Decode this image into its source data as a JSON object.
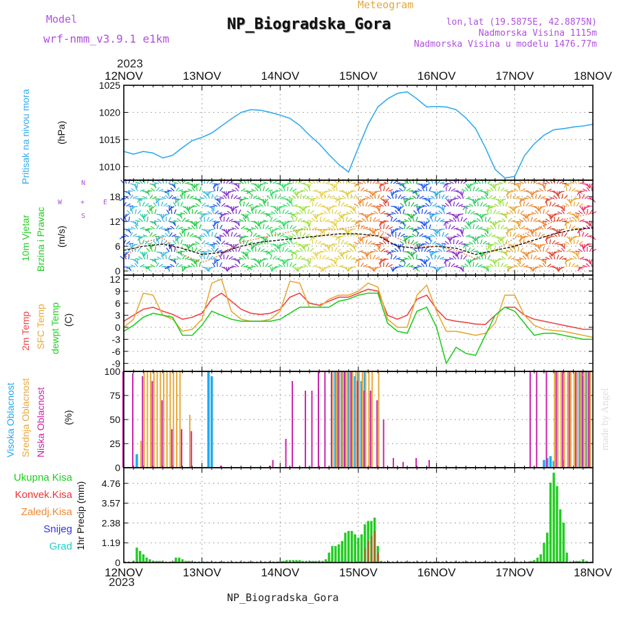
{
  "header": {
    "model_label": "Model",
    "model_name": "wrf-nmm_v3.9.1 e1km",
    "title": "NP_Biogradska_Gora",
    "meteogram": "Meteogram",
    "lonlat": "lon,lat (19.5875E, 42.8875N)",
    "altitude": "Nadmorska Visina 1115m",
    "model_altitude": "Nadmorska Visina u modelu 1476.77m"
  },
  "year_top": "2023",
  "year_bottom": "2023",
  "footer": "NP_Biogradska_Gora",
  "watermark": "made by Angel",
  "compass": {
    "n": "N",
    "s": "S",
    "e": "E",
    "w": "W",
    "plus": "+"
  },
  "panel_labels": {
    "pressure": {
      "text": "Pritisak na nivou mora",
      "unit": "(hPa)",
      "color": "#33aaee"
    },
    "wind": {
      "line1": "10m Vjetar",
      "line2": "Brzina i Pravac",
      "unit": "(m/s)",
      "color": "#22cc22"
    },
    "temp": {
      "line1": "2m Temp",
      "line2": "SFC Temp",
      "line3": "dewpt Temp",
      "unit": "(C)",
      "colors": [
        "#ee4444",
        "#e8a838",
        "#22cc22"
      ]
    },
    "cloud": {
      "line1": "Visoka Oblacnost",
      "line2": "Srednja Oblacnost",
      "line3": "Niska Oblacnost",
      "unit": "(%)",
      "colors": [
        "#22aaee",
        "#e8a838",
        "#cc22aa"
      ]
    },
    "precip": {
      "items": [
        {
          "text": "Ukupna Kisa",
          "color": "#22cc22"
        },
        {
          "text": "Konvek.Kisa",
          "color": "#ee3333"
        },
        {
          "text": "Zaledj.Kisa",
          "color": "#ee8833"
        },
        {
          "text": "Snijeg",
          "color": "#3333dd"
        },
        {
          "text": "Grad",
          "color": "#22cccc"
        }
      ],
      "unit": "1hr Precip (mm)"
    }
  },
  "chart_data": [
    {
      "type": "line",
      "name": "pressure",
      "x_ticks": [
        "12NOV",
        "13NOV",
        "14NOV",
        "15NOV",
        "16NOV",
        "17NOV",
        "18NOV"
      ],
      "ylim": [
        1007.5,
        1025
      ],
      "y_ticks": [
        "1010",
        "1015",
        "1020",
        "1025"
      ],
      "y_tick_values": [
        1010,
        1015,
        1020,
        1025
      ],
      "grid": true,
      "color": "#33aaee",
      "x_hours": [
        0,
        3,
        6,
        9,
        12,
        15,
        18,
        21,
        24,
        27,
        30,
        33,
        36,
        39,
        42,
        45,
        48,
        51,
        54,
        57,
        60,
        63,
        66,
        69,
        72,
        75,
        78,
        81,
        84,
        87,
        90,
        93,
        96,
        99,
        102,
        105,
        108,
        111,
        114,
        117,
        120,
        123,
        126,
        129,
        132,
        135,
        138,
        141,
        144
      ],
      "values": [
        1012.8,
        1012.3,
        1012.8,
        1012.5,
        1011.6,
        1012.1,
        1013.5,
        1014.8,
        1015.4,
        1016.2,
        1017.5,
        1018.8,
        1020.0,
        1020.5,
        1020.4,
        1020.0,
        1019.5,
        1018.9,
        1017.6,
        1015.8,
        1014.2,
        1012.2,
        1010.4,
        1009.0,
        1013.5,
        1017.8,
        1021.0,
        1022.5,
        1023.5,
        1023.8,
        1022.5,
        1021.0,
        1021.1,
        1021.0,
        1020.5,
        1019.0,
        1017.0,
        1013.5,
        1009.5,
        1007.9,
        1008.2,
        1012.0,
        1014.2,
        1015.8,
        1016.8,
        1017.0,
        1017.3,
        1017.5,
        1017.8
      ]
    },
    {
      "type": "line",
      "name": "wind",
      "ylim": [
        -1,
        22
      ],
      "y_ticks": [
        "0",
        "6",
        "12",
        "18"
      ],
      "y_tick_values": [
        0,
        6,
        12,
        18
      ],
      "grid": true,
      "x_hours": [
        0,
        6,
        12,
        18,
        24,
        30,
        36,
        42,
        48,
        54,
        60,
        66,
        72,
        78,
        84,
        90,
        96,
        102,
        108,
        114,
        120,
        126,
        132,
        138,
        144
      ],
      "speed_solid": [
        5,
        6,
        6.5,
        5.5,
        4,
        4.5,
        6,
        7,
        7.5,
        8,
        8.5,
        9,
        9,
        8.5,
        6,
        5.5,
        6,
        5.5,
        4,
        5,
        6,
        7.5,
        9,
        10,
        10.5
      ],
      "speed_gust": [
        3,
        7,
        8,
        4,
        2,
        4,
        7,
        8,
        9,
        10,
        10,
        10,
        11,
        10,
        8,
        6,
        6,
        5,
        3,
        5,
        8,
        10,
        12,
        13,
        14
      ],
      "band_colors": [
        "#2255ee",
        "#44bbdd",
        "#33dd66",
        "#9ee044",
        "#e8d050",
        "#ee8833",
        "#dd3322",
        "#8833cc"
      ],
      "bands": [
        {
          "from": 0,
          "to": 2,
          "c": "#2255ee"
        },
        {
          "from": 2,
          "to": 5,
          "c": "#44bbdd"
        },
        {
          "from": 5,
          "to": 8,
          "c": "#22cc99"
        },
        {
          "from": 8,
          "to": 10,
          "c": "#33cc33"
        },
        {
          "from": 10,
          "to": 14,
          "c": "#44bbdd"
        },
        {
          "from": 14,
          "to": 16,
          "c": "#2244dd"
        },
        {
          "from": 16,
          "to": 18,
          "c": "#33cc88"
        },
        {
          "from": 18,
          "to": 24,
          "c": "#22cc44"
        },
        {
          "from": 24,
          "to": 28,
          "c": "#44bbdd"
        },
        {
          "from": 28,
          "to": 30,
          "c": "#2255ee"
        },
        {
          "from": 30,
          "to": 36,
          "c": "#8833cc"
        },
        {
          "from": 36,
          "to": 39,
          "c": "#22cc44"
        },
        {
          "from": 39,
          "to": 45,
          "c": "#33cc55"
        },
        {
          "from": 45,
          "to": 52,
          "c": "#33dd66"
        },
        {
          "from": 52,
          "to": 58,
          "c": "#9ee044"
        },
        {
          "from": 58,
          "to": 66,
          "c": "#e8d050"
        },
        {
          "from": 66,
          "to": 72,
          "c": "#ddcc44"
        },
        {
          "from": 72,
          "to": 79,
          "c": "#ee8833"
        },
        {
          "from": 79,
          "to": 82,
          "c": "#dd4433"
        },
        {
          "from": 82,
          "to": 86,
          "c": "#2255ee"
        },
        {
          "from": 86,
          "to": 90,
          "c": "#22bb44"
        },
        {
          "from": 90,
          "to": 94,
          "c": "#2255ee"
        },
        {
          "from": 94,
          "to": 99,
          "c": "#33aaee"
        },
        {
          "from": 99,
          "to": 105,
          "c": "#8833cc"
        },
        {
          "from": 105,
          "to": 112,
          "c": "#33cc66"
        },
        {
          "from": 112,
          "to": 118,
          "c": "#9ee044"
        },
        {
          "from": 118,
          "to": 122,
          "c": "#e8a838"
        },
        {
          "from": 122,
          "to": 130,
          "c": "#ee8833"
        },
        {
          "from": 130,
          "to": 136,
          "c": "#dd4433"
        },
        {
          "from": 136,
          "to": 140,
          "c": "#e8a838"
        },
        {
          "from": 140,
          "to": 144,
          "c": "#ee3366"
        }
      ]
    },
    {
      "type": "line",
      "name": "temperature",
      "ylim": [
        -11,
        13
      ],
      "y_ticks": [
        "-9",
        "-6",
        "-3",
        "0",
        "3",
        "6",
        "9",
        "12"
      ],
      "y_tick_values": [
        -9,
        -6,
        -3,
        0,
        3,
        6,
        9,
        12
      ],
      "grid": true,
      "x_hours": [
        0,
        3,
        6,
        9,
        12,
        15,
        18,
        21,
        24,
        27,
        30,
        33,
        36,
        39,
        42,
        45,
        48,
        51,
        54,
        57,
        60,
        63,
        66,
        69,
        72,
        75,
        78,
        81,
        84,
        87,
        90,
        93,
        96,
        99,
        102,
        105,
        108,
        111,
        114,
        117,
        120,
        123,
        126,
        129,
        132,
        135,
        138,
        141,
        144
      ],
      "series": [
        {
          "name": "2m Temp",
          "color": "#ee4444",
          "values": [
            1.5,
            3,
            4.5,
            5,
            4,
            3.2,
            2,
            2.5,
            3.5,
            7,
            8.5,
            6.5,
            4.5,
            3.5,
            3.2,
            3.5,
            4.5,
            7.5,
            8.5,
            6,
            5.5,
            6.5,
            7.5,
            7.5,
            8.5,
            9.5,
            9,
            3,
            2,
            3,
            7,
            8,
            4.5,
            2,
            1.5,
            1.2,
            0.8,
            0.7,
            3,
            5,
            5,
            3,
            2,
            1.5,
            1,
            0.5,
            0,
            -0.5,
            -0.5
          ]
        },
        {
          "name": "SFC Temp",
          "color": "#e8a838",
          "values": [
            0,
            2,
            8.5,
            8,
            3,
            2,
            -1,
            -0.5,
            2,
            11,
            12,
            4,
            2,
            1.5,
            1.5,
            2,
            4,
            11.5,
            11,
            5,
            5,
            7,
            8,
            8,
            9,
            11,
            10,
            2,
            0,
            0,
            8,
            10.5,
            4,
            -1,
            -1,
            -1.5,
            -2,
            -1.5,
            1,
            8,
            8,
            3,
            0.5,
            -0.5,
            -0.8,
            -1,
            -1.5,
            -2,
            -2.5
          ]
        },
        {
          "name": "dewpt Temp",
          "color": "#22cc22",
          "values": [
            -1,
            0.5,
            2.5,
            3.5,
            3,
            2.5,
            -2,
            -2,
            0.5,
            4,
            3,
            2,
            1.5,
            1.5,
            1.5,
            1.5,
            2,
            3.5,
            5,
            5,
            5,
            5,
            6.5,
            7,
            8,
            8.5,
            8.5,
            1,
            -1,
            -1.5,
            4,
            5,
            0,
            -9,
            -5,
            -6.5,
            -7,
            -2,
            3,
            5,
            4,
            1,
            -2,
            -1.5,
            -1.5,
            -2,
            -2.5,
            -3,
            -3
          ]
        }
      ]
    },
    {
      "type": "bar",
      "name": "cloud",
      "ylim": [
        0,
        100
      ],
      "y_ticks": [
        "0",
        "25",
        "50",
        "75",
        "100"
      ],
      "y_tick_values": [
        0,
        25,
        50,
        75,
        100
      ],
      "grid": true,
      "series": [
        {
          "name": "Visoka Oblacnost",
          "color": "#22aaee",
          "x": [
            4,
            26,
            27,
            65,
            66,
            67,
            68,
            69,
            70,
            71,
            72,
            73,
            74,
            129,
            130,
            131,
            132,
            135,
            140,
            141,
            142,
            143
          ],
          "values": [
            14,
            100,
            95,
            100,
            100,
            100,
            100,
            100,
            100,
            95,
            100,
            90,
            100,
            8,
            10,
            12,
            7,
            8,
            100,
            95,
            100,
            100
          ]
        },
        {
          "name": "Srednja Oblacnost",
          "color": "#e8a838",
          "x": [
            5,
            6,
            7,
            8,
            9,
            10,
            11,
            12,
            13,
            14,
            15,
            16,
            17,
            20,
            64,
            65,
            66,
            67,
            68,
            69,
            70,
            71,
            72,
            73,
            74,
            75,
            76,
            78,
            132,
            133,
            134,
            135,
            136,
            137,
            138,
            139,
            140,
            141,
            142,
            143
          ],
          "values": [
            28,
            100,
            100,
            100,
            100,
            100,
            100,
            100,
            100,
            100,
            100,
            100,
            100,
            55,
            100,
            100,
            100,
            100,
            100,
            100,
            100,
            100,
            100,
            100,
            100,
            100,
            100,
            100,
            100,
            100,
            100,
            100,
            100,
            100,
            100,
            100,
            100,
            100,
            100,
            100
          ]
        },
        {
          "name": "Niska Oblacnost",
          "color": "#cc22aa",
          "x": [
            0,
            3,
            6,
            9,
            12,
            15,
            18,
            21,
            30,
            45,
            46,
            50,
            52,
            56,
            58,
            60,
            62,
            64,
            66,
            68,
            70,
            72,
            74,
            76,
            78,
            80,
            83,
            86,
            90,
            94,
            125,
            127,
            130,
            133,
            135,
            137,
            139,
            141,
            143
          ],
          "values": [
            100,
            98,
            95,
            90,
            70,
            40,
            40,
            38,
            2,
            2,
            8,
            30,
            90,
            80,
            80,
            100,
            100,
            100,
            100,
            100,
            100,
            90,
            80,
            80,
            70,
            50,
            10,
            6,
            10,
            8,
            100,
            100,
            100,
            100,
            100,
            100,
            100,
            100,
            100
          ]
        }
      ]
    },
    {
      "type": "bar",
      "name": "precip",
      "x_ticks": [
        "12NOV",
        "13NOV",
        "14NOV",
        "15NOV",
        "16NOV",
        "17NOV",
        "18NOV"
      ],
      "ylim": [
        0,
        5.7
      ],
      "y_ticks": [
        "0",
        "1.19",
        "2.38",
        "3.57",
        "4.76"
      ],
      "y_tick_values": [
        0,
        1.19,
        2.38,
        3.57,
        4.76
      ],
      "grid": true,
      "series": [
        {
          "name": "Ukupna Kisa",
          "color": "#22cc22",
          "x": [
            3,
            4,
            5,
            6,
            7,
            8,
            9,
            10,
            11,
            12,
            13,
            14,
            15,
            16,
            17,
            18,
            19,
            20,
            21,
            22,
            23,
            24,
            25,
            26,
            46,
            47,
            48,
            49,
            50,
            51,
            52,
            53,
            54,
            55,
            56,
            57,
            58,
            59,
            60,
            61,
            62,
            63,
            64,
            65,
            66,
            67,
            68,
            69,
            70,
            71,
            72,
            73,
            74,
            75,
            76,
            77,
            78,
            79,
            80,
            124,
            125,
            126,
            127,
            128,
            129,
            130,
            131,
            132,
            133,
            134,
            135,
            136,
            137,
            138,
            139,
            140,
            141,
            142,
            143
          ],
          "values": [
            0.1,
            0.9,
            0.7,
            0.5,
            0.3,
            0.2,
            0.1,
            0.1,
            0.1,
            0.05,
            0.05,
            0.05,
            0.05,
            0.3,
            0.3,
            0.2,
            0.1,
            0.1,
            0.05,
            0.05,
            0.05,
            0.05,
            0.05,
            0.05,
            0.05,
            0.05,
            0.1,
            0.1,
            0.15,
            0.15,
            0.15,
            0.15,
            0.15,
            0.1,
            0.1,
            0.1,
            0.1,
            0.1,
            0.1,
            0.1,
            0.2,
            0.6,
            1.0,
            1.0,
            1.1,
            1.3,
            1.8,
            1.9,
            1.9,
            1.7,
            1.5,
            1.7,
            2.3,
            2.5,
            2.5,
            2.7,
            1.0,
            0.1,
            0.05,
            0.05,
            0.1,
            0.15,
            0.3,
            0.5,
            1.2,
            1.8,
            4.8,
            5.4,
            4.6,
            3.2,
            2.4,
            0.6,
            0.05,
            0.05,
            0.1,
            0.1,
            0.2,
            0.1,
            0.05
          ]
        },
        {
          "name": "Konvek.Kisa",
          "color": "#ee3333",
          "x": [
            74,
            75,
            76,
            77,
            78
          ],
          "values": [
            0.9,
            1.3,
            1.6,
            1.9,
            0.6
          ]
        }
      ]
    }
  ]
}
